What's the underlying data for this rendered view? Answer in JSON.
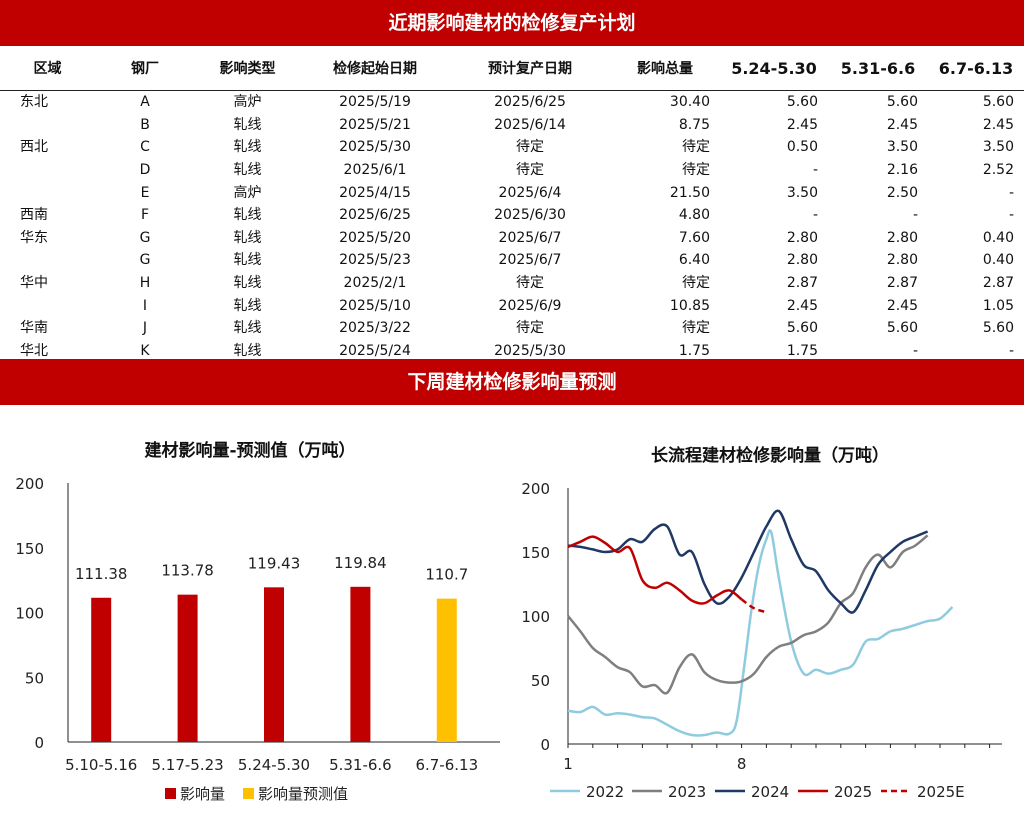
{
  "banner_top": "近期影响建材的检修复产计划",
  "banner_bottom": "下周建材检修影响量预测",
  "table": {
    "headers": [
      "区域",
      "钢厂",
      "影响类型",
      "检修起始日期",
      "预计复产日期",
      "影响总量",
      "5.24-5.30",
      "5.31-6.6",
      "6.7-6.13"
    ],
    "rows": [
      [
        "东北",
        "A",
        "高炉",
        "2025/5/19",
        "2025/6/25",
        "30.40",
        "5.60",
        "5.60",
        "5.60"
      ],
      [
        "",
        "B",
        "轧线",
        "2025/5/21",
        "2025/6/14",
        "8.75",
        "2.45",
        "2.45",
        "2.45"
      ],
      [
        "西北",
        "C",
        "轧线",
        "2025/5/30",
        "待定",
        "待定",
        "0.50",
        "3.50",
        "3.50"
      ],
      [
        "",
        "D",
        "轧线",
        "2025/6/1",
        "待定",
        "待定",
        "-",
        "2.16",
        "2.52"
      ],
      [
        "",
        "E",
        "高炉",
        "2025/4/15",
        "2025/6/4",
        "21.50",
        "3.50",
        "2.50",
        "-"
      ],
      [
        "西南",
        "F",
        "轧线",
        "2025/6/25",
        "2025/6/30",
        "4.80",
        "-",
        "-",
        "-"
      ],
      [
        "华东",
        "G",
        "轧线",
        "2025/5/20",
        "2025/6/7",
        "7.60",
        "2.80",
        "2.80",
        "0.40"
      ],
      [
        "",
        "G",
        "轧线",
        "2025/5/23",
        "2025/6/7",
        "6.40",
        "2.80",
        "2.80",
        "0.40"
      ],
      [
        "华中",
        "H",
        "轧线",
        "2025/2/1",
        "待定",
        "待定",
        "2.87",
        "2.87",
        "2.87"
      ],
      [
        "",
        "I",
        "轧线",
        "2025/5/10",
        "2025/6/9",
        "10.85",
        "2.45",
        "2.45",
        "1.05"
      ],
      [
        "华南",
        "J",
        "轧线",
        "2025/3/22",
        "待定",
        "待定",
        "5.60",
        "5.60",
        "5.60"
      ],
      [
        "华北",
        "K",
        "轧线",
        "2025/5/24",
        "2025/5/30",
        "1.75",
        "1.75",
        "-",
        "-"
      ]
    ]
  },
  "chart_data": [
    {
      "type": "bar",
      "title": "建材影响量-预测值（万吨）",
      "categories": [
        "5.10-5.16",
        "5.17-5.23",
        "5.24-5.30",
        "5.31-6.6",
        "6.7-6.13"
      ],
      "values": [
        111.38,
        113.78,
        119.43,
        119.84,
        110.7
      ],
      "value_labels": [
        "111.38",
        "113.78",
        "119.43",
        "119.84",
        "110.7"
      ],
      "kinds": [
        "actual",
        "actual",
        "actual",
        "actual",
        "forecast"
      ],
      "series": [
        {
          "name": "影响量",
          "color": "#c00000"
        },
        {
          "name": "影响量预测值",
          "color": "#ffc000"
        }
      ],
      "yticks": [
        "0",
        "50",
        "100",
        "150",
        "200"
      ],
      "ylim": [
        0,
        200
      ],
      "legend": "bottom"
    },
    {
      "type": "line",
      "title": "长流程建材检修影响量（万吨）",
      "xticks": [
        "1",
        "8"
      ],
      "xlim": [
        1,
        18.5
      ],
      "yticks": [
        "0",
        "50",
        "100",
        "150",
        "200"
      ],
      "ylim": [
        0,
        200
      ],
      "legend": "bottom",
      "series": [
        {
          "name": "2022",
          "color": "#8fcbde",
          "dash": false,
          "points": [
            [
              1,
              26
            ],
            [
              1.5,
              25
            ],
            [
              2,
              29
            ],
            [
              2.5,
              23
            ],
            [
              3,
              24
            ],
            [
              3.5,
              23
            ],
            [
              4,
              21
            ],
            [
              4.5,
              20
            ],
            [
              5,
              15
            ],
            [
              5.5,
              10
            ],
            [
              6,
              7
            ],
            [
              6.5,
              7
            ],
            [
              7,
              9
            ],
            [
              7.5,
              8
            ],
            [
              7.8,
              18
            ],
            [
              8.1,
              60
            ],
            [
              8.4,
              105
            ],
            [
              8.7,
              140
            ],
            [
              9,
              160
            ],
            [
              9.2,
              165
            ],
            [
              9.5,
              130
            ],
            [
              10,
              80
            ],
            [
              10.5,
              55
            ],
            [
              11,
              58
            ],
            [
              11.5,
              55
            ],
            [
              12,
              58
            ],
            [
              12.5,
              62
            ],
            [
              13,
              80
            ],
            [
              13.5,
              82
            ],
            [
              14,
              88
            ],
            [
              14.5,
              90
            ],
            [
              15,
              93
            ],
            [
              15.5,
              96
            ],
            [
              16,
              98
            ],
            [
              16.5,
              107
            ]
          ]
        },
        {
          "name": "2023",
          "color": "#7f7f7f",
          "dash": false,
          "points": [
            [
              1,
              100
            ],
            [
              1.5,
              88
            ],
            [
              2,
              75
            ],
            [
              2.5,
              68
            ],
            [
              3,
              60
            ],
            [
              3.5,
              56
            ],
            [
              4,
              45
            ],
            [
              4.5,
              46
            ],
            [
              5,
              40
            ],
            [
              5.5,
              60
            ],
            [
              6,
              70
            ],
            [
              6.5,
              56
            ],
            [
              7,
              50
            ],
            [
              7.5,
              48
            ],
            [
              8,
              49
            ],
            [
              8.5,
              55
            ],
            [
              9,
              68
            ],
            [
              9.5,
              76
            ],
            [
              10,
              79
            ],
            [
              10.5,
              85
            ],
            [
              11,
              88
            ],
            [
              11.5,
              95
            ],
            [
              12,
              110
            ],
            [
              12.5,
              118
            ],
            [
              13,
              138
            ],
            [
              13.5,
              148
            ],
            [
              14,
              138
            ],
            [
              14.5,
              150
            ],
            [
              15,
              155
            ],
            [
              15.5,
              163
            ]
          ]
        },
        {
          "name": "2024",
          "color": "#1f3864",
          "dash": false,
          "points": [
            [
              1,
              155
            ],
            [
              1.5,
              154
            ],
            [
              2,
              152
            ],
            [
              2.5,
              150
            ],
            [
              3,
              152
            ],
            [
              3.5,
              160
            ],
            [
              4,
              158
            ],
            [
              4.5,
              168
            ],
            [
              5,
              170
            ],
            [
              5.5,
              148
            ],
            [
              6,
              150
            ],
            [
              6.5,
              125
            ],
            [
              7,
              110
            ],
            [
              7.5,
              115
            ],
            [
              8,
              130
            ],
            [
              8.5,
              150
            ],
            [
              9,
              170
            ],
            [
              9.5,
              182
            ],
            [
              10,
              160
            ],
            [
              10.5,
              140
            ],
            [
              11,
              135
            ],
            [
              11.5,
              120
            ],
            [
              12,
              110
            ],
            [
              12.5,
              103
            ],
            [
              13,
              120
            ],
            [
              13.5,
              140
            ],
            [
              14,
              150
            ],
            [
              14.5,
              158
            ],
            [
              15,
              162
            ],
            [
              15.5,
              166
            ]
          ]
        },
        {
          "name": "2025",
          "color": "#c00000",
          "dash": false,
          "points": [
            [
              1,
              154
            ],
            [
              1.5,
              158
            ],
            [
              2,
              162
            ],
            [
              2.5,
              157
            ],
            [
              3,
              150
            ],
            [
              3.5,
              153
            ],
            [
              4,
              128
            ],
            [
              4.5,
              122
            ],
            [
              5,
              126
            ],
            [
              5.5,
              120
            ],
            [
              6,
              112
            ],
            [
              6.5,
              110
            ],
            [
              7,
              116
            ],
            [
              7.5,
              120
            ],
            [
              8,
              113
            ]
          ]
        },
        {
          "name": "2025E",
          "color": "#c00000",
          "dash": true,
          "points": [
            [
              8,
              113
            ],
            [
              8.5,
              106
            ],
            [
              9,
              103
            ]
          ]
        }
      ]
    }
  ]
}
